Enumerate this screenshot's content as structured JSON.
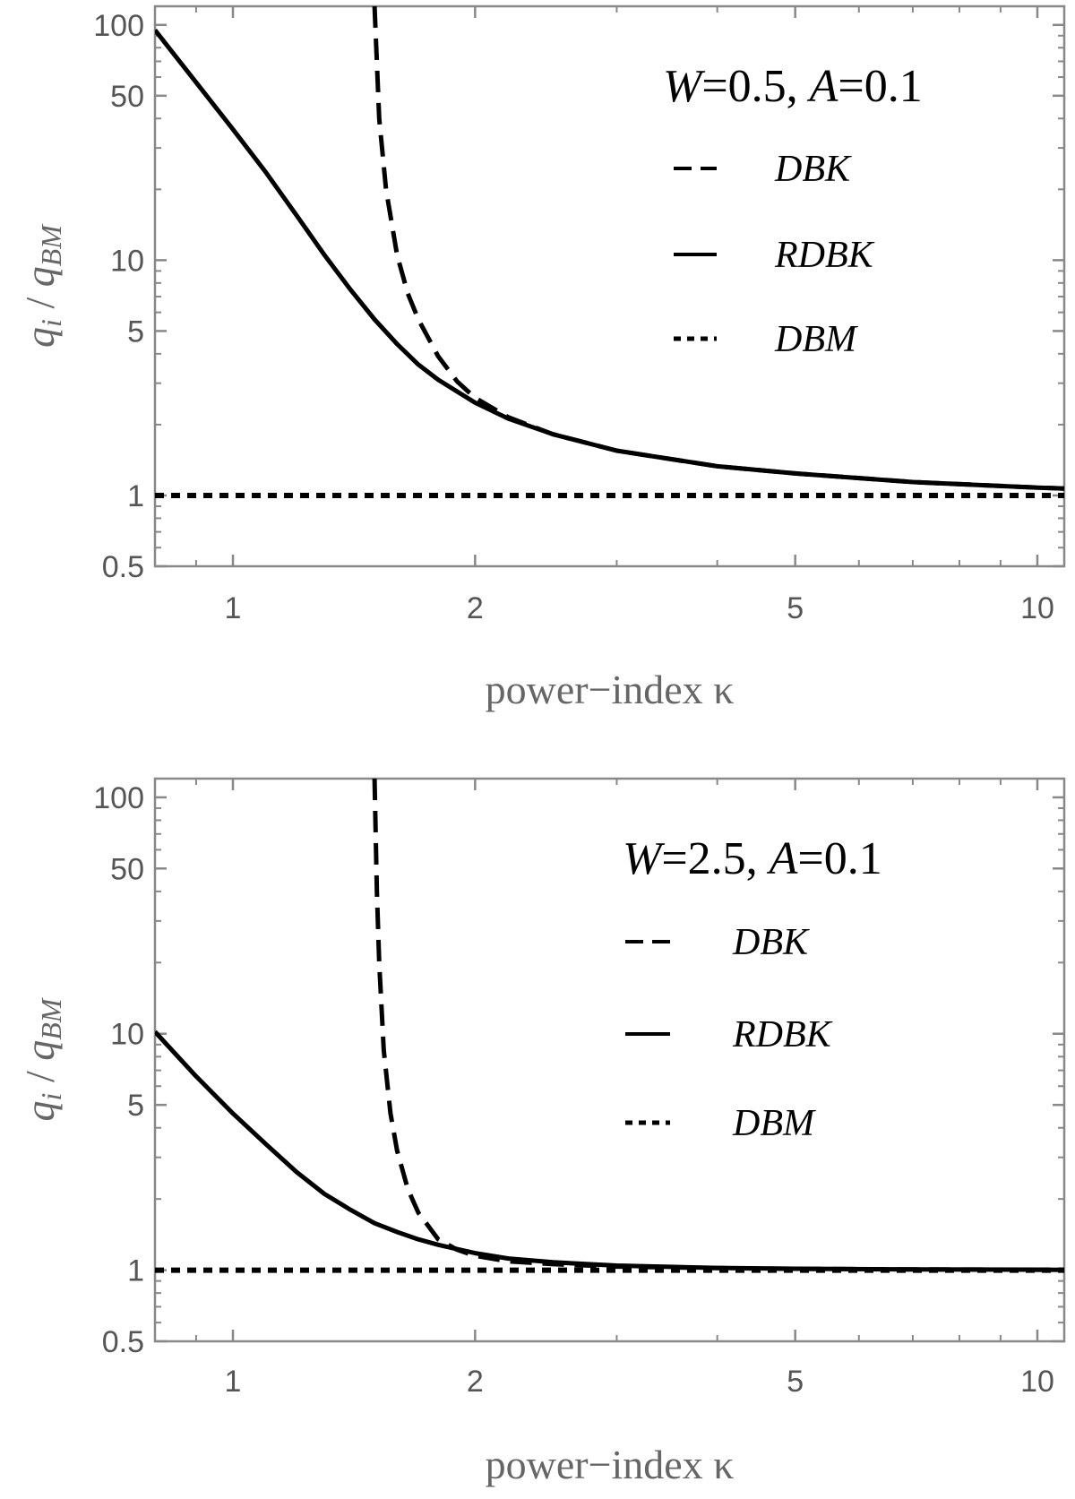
{
  "chart_data": [
    {
      "type": "line",
      "annotation": "W=0.5, A=0.1",
      "annotation_parts": [
        "W",
        "=0.5, ",
        "A",
        "=0.1"
      ],
      "xlabel": "power−index κ",
      "ylabel": "q i / q BM",
      "ylabel_parts": [
        "q",
        "i",
        " / ",
        "q",
        "BM"
      ],
      "x_scale": "log",
      "y_scale": "log",
      "xlim": [
        0.8,
        10.8
      ],
      "ylim": [
        0.5,
        120
      ],
      "x_ticks": [
        1,
        2,
        5,
        10
      ],
      "x_tick_labels": [
        "1",
        "2",
        "5",
        "10"
      ],
      "y_ticks": [
        0.5,
        1,
        5,
        10,
        50,
        100
      ],
      "y_tick_labels": [
        "0.5",
        "1",
        "5",
        "10",
        "50",
        "100"
      ],
      "grid": false,
      "legend_position": "top-right",
      "series": [
        {
          "name": "DBK",
          "style": "dashed",
          "x": [
            1.5,
            1.52,
            1.55,
            1.6,
            1.65,
            1.7,
            1.8,
            1.9,
            2.0,
            2.2,
            2.5,
            3.0,
            4.0,
            5.0,
            7.0,
            10.0,
            10.8
          ],
          "y": [
            120,
            40,
            20,
            10.5,
            7.2,
            5.6,
            3.9,
            3.05,
            2.6,
            2.15,
            1.82,
            1.55,
            1.33,
            1.24,
            1.14,
            1.08,
            1.07
          ]
        },
        {
          "name": "RDBK",
          "style": "solid",
          "x": [
            0.8,
            0.9,
            1.0,
            1.1,
            1.2,
            1.3,
            1.4,
            1.5,
            1.6,
            1.7,
            1.8,
            2.0,
            2.2,
            2.5,
            3.0,
            4.0,
            5.0,
            7.0,
            10.0,
            10.8
          ],
          "y": [
            95,
            57,
            36,
            23.5,
            15.5,
            10.5,
            7.5,
            5.6,
            4.4,
            3.6,
            3.1,
            2.48,
            2.12,
            1.82,
            1.55,
            1.33,
            1.24,
            1.14,
            1.08,
            1.07
          ]
        },
        {
          "name": "DBM",
          "style": "dotted",
          "x": [
            0.8,
            10.8
          ],
          "y": [
            1.0,
            1.0
          ]
        }
      ]
    },
    {
      "type": "line",
      "annotation": "W=2.5, A=0.1",
      "annotation_parts": [
        "W",
        "=2.5, ",
        "A",
        "=0.1"
      ],
      "xlabel": "power−index κ",
      "ylabel": "q i / q BM",
      "ylabel_parts": [
        "q",
        "i",
        " / ",
        "q",
        "BM"
      ],
      "x_scale": "log",
      "y_scale": "log",
      "xlim": [
        0.8,
        10.8
      ],
      "ylim": [
        0.5,
        120
      ],
      "x_ticks": [
        1,
        2,
        5,
        10
      ],
      "x_tick_labels": [
        "1",
        "2",
        "5",
        "10"
      ],
      "y_ticks": [
        0.5,
        1,
        5,
        10,
        50,
        100
      ],
      "y_tick_labels": [
        "0.5",
        "1",
        "5",
        "10",
        "50",
        "100"
      ],
      "grid": false,
      "legend_position": "right",
      "series": [
        {
          "name": "DBK",
          "style": "dashed",
          "x": [
            1.5,
            1.51,
            1.52,
            1.54,
            1.57,
            1.6,
            1.65,
            1.7,
            1.8,
            1.9,
            2.0,
            2.2,
            2.5,
            3.0,
            4.0,
            5.0,
            7.0,
            10.0,
            10.8
          ],
          "y": [
            120,
            40,
            20,
            8.5,
            4.6,
            3.2,
            2.2,
            1.75,
            1.35,
            1.22,
            1.15,
            1.09,
            1.06,
            1.035,
            1.02,
            1.013,
            1.008,
            1.004,
            1.003
          ]
        },
        {
          "name": "RDBK",
          "style": "solid",
          "x": [
            0.8,
            0.9,
            1.0,
            1.1,
            1.2,
            1.3,
            1.4,
            1.5,
            1.6,
            1.7,
            1.8,
            2.0,
            2.2,
            2.5,
            3.0,
            4.0,
            5.0,
            7.0,
            10.0,
            10.8
          ],
          "y": [
            10.2,
            6.6,
            4.6,
            3.4,
            2.6,
            2.1,
            1.8,
            1.58,
            1.45,
            1.35,
            1.28,
            1.18,
            1.12,
            1.08,
            1.045,
            1.022,
            1.014,
            1.008,
            1.004,
            1.003
          ]
        },
        {
          "name": "DBM",
          "style": "dotted",
          "x": [
            0.8,
            10.8
          ],
          "y": [
            1.0,
            1.0
          ]
        }
      ]
    }
  ]
}
